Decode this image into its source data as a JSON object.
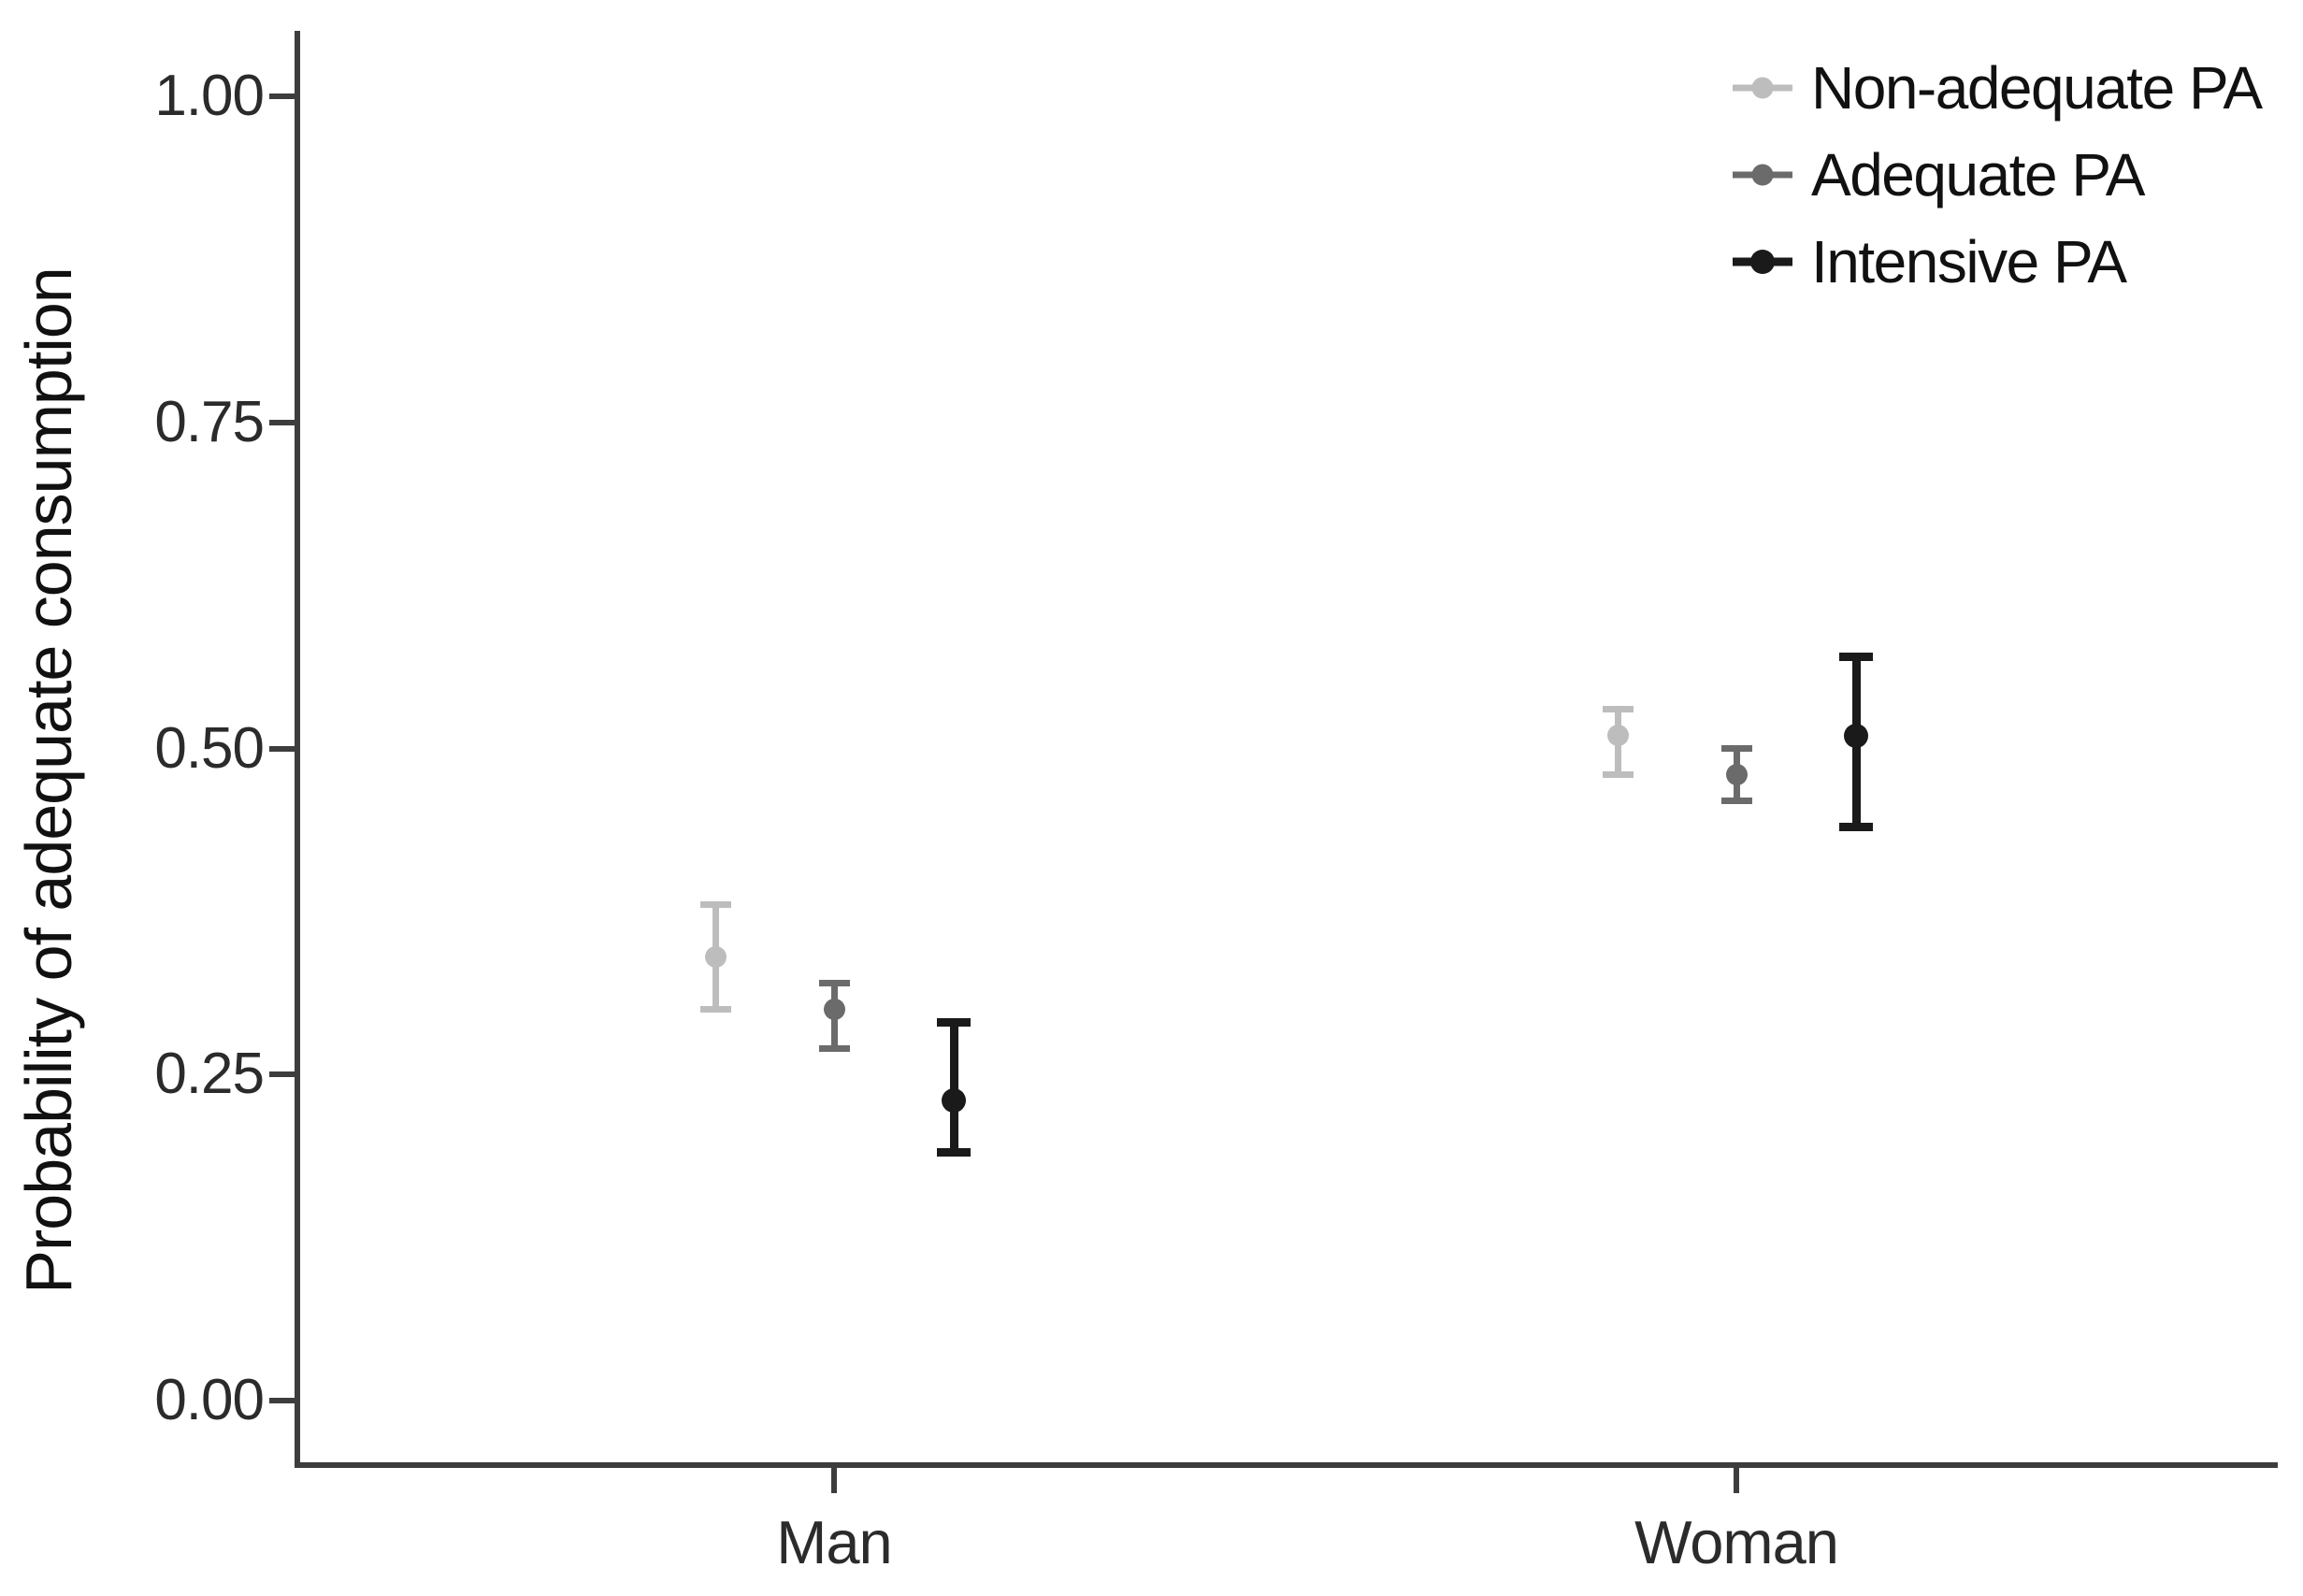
{
  "chart_data": {
    "type": "scatter",
    "subtype": "pointrange-errorbar",
    "title": "",
    "xlabel": "",
    "ylabel": "Probability of adequate consumption",
    "categories": [
      "Man",
      "Woman"
    ],
    "y_tick_labels": [
      "1.00",
      "0.75",
      "0.50",
      "0.25",
      "0.00"
    ],
    "y_tick_values": [
      1.0,
      0.75,
      0.5,
      0.25,
      0.0
    ],
    "ylim": [
      0,
      1.05
    ],
    "grid": "off",
    "legend_position": "top-right",
    "axis_color": "#3d3d3d",
    "background_color": "#ffffff",
    "series": [
      {
        "name": "Non-adequate PA",
        "color": "#bdbdbd",
        "points": [
          {
            "category": "Man",
            "value": 0.34,
            "ci_low": 0.3,
            "ci_high": 0.38
          },
          {
            "category": "Woman",
            "value": 0.51,
            "ci_low": 0.48,
            "ci_high": 0.53
          }
        ]
      },
      {
        "name": "Adequate PA",
        "color": "#6b6b6b",
        "points": [
          {
            "category": "Man",
            "value": 0.3,
            "ci_low": 0.27,
            "ci_high": 0.32
          },
          {
            "category": "Woman",
            "value": 0.48,
            "ci_low": 0.46,
            "ci_high": 0.5
          }
        ]
      },
      {
        "name": "Intensive PA",
        "color": "#1a1a1a",
        "points": [
          {
            "category": "Man",
            "value": 0.23,
            "ci_low": 0.19,
            "ci_high": 0.29
          },
          {
            "category": "Woman",
            "value": 0.51,
            "ci_low": 0.44,
            "ci_high": 0.57
          }
        ]
      }
    ]
  }
}
